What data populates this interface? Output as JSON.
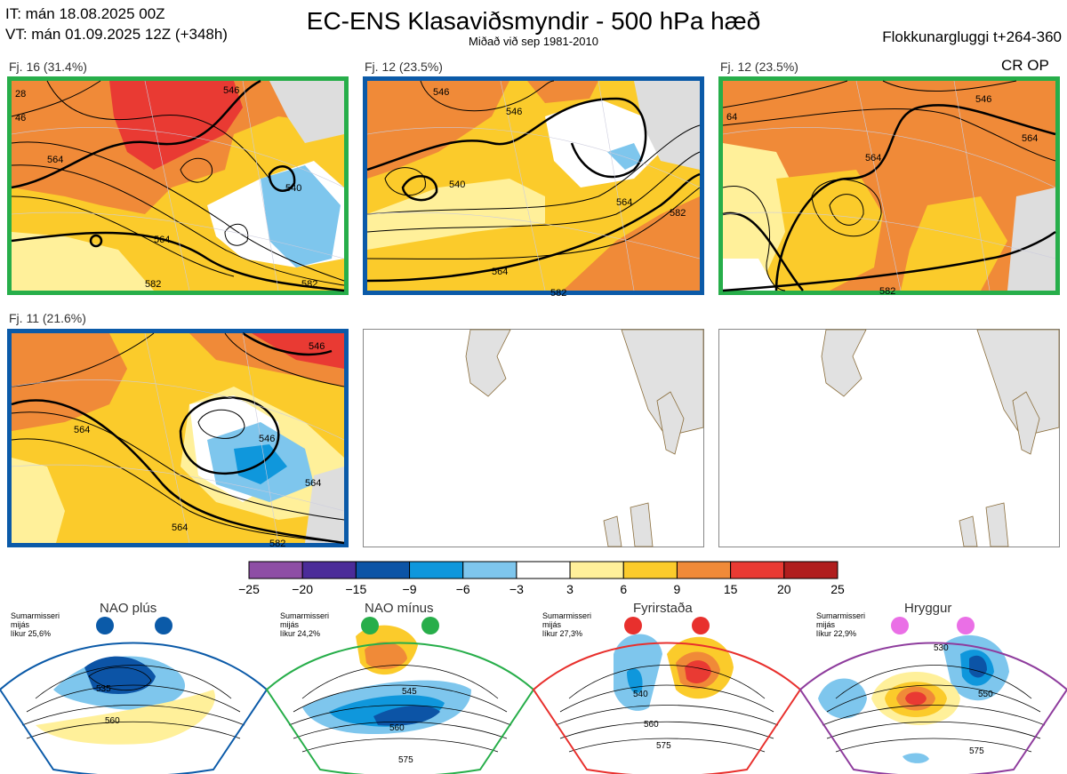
{
  "header": {
    "it_line": "IT: mán 18.08.2025 00Z",
    "vt_line": "VT: mán 01.09.2025 12Z  (+348h)",
    "title": "EC-ENS Klasaviðsmyndir - 500 hPa hæð",
    "subtitle": "Miðað við sep 1981-2010",
    "window": "Flokkunargluggi t+264-360",
    "run_tag": "CR OP"
  },
  "colors": {
    "green": "#27ae4a",
    "blue": "#0b5aa8",
    "red": "#e8302d",
    "purple": "#8e3c9d",
    "pink": "#ea6fe6"
  },
  "panels": [
    {
      "label": "Fj. 16 (31.4%)",
      "frame": "green",
      "contours": [
        "28",
        "46",
        "564",
        "564",
        "582",
        "546",
        "540",
        "582"
      ]
    },
    {
      "label": "Fj. 12 (23.5%)",
      "frame": "blue",
      "contours": [
        "546",
        "540",
        "546",
        "564",
        "582",
        "564",
        "582"
      ]
    },
    {
      "label": "Fj. 12 (23.5%)",
      "frame": "green",
      "contours": [
        "546",
        "564",
        "564",
        "64",
        "582"
      ]
    },
    {
      "label": "Fj. 11 (21.6%)",
      "frame": "blue",
      "contours": [
        "546",
        "564",
        "546",
        "564",
        "564",
        "582"
      ]
    }
  ],
  "colorbar": {
    "ticks": [
      "−25",
      "−20",
      "−15",
      "−9",
      "−6",
      "−3",
      "3",
      "6",
      "9",
      "15",
      "20",
      "25"
    ],
    "colors": [
      "#8e4ea5",
      "#4b2c99",
      "#0c54a6",
      "#0f97dc",
      "#7ec6ed",
      "#ffffff",
      "#fff09a",
      "#fbcb2b",
      "#f08a38",
      "#e93a33",
      "#b01e1e"
    ]
  },
  "regimes": [
    {
      "name": "NAO plús",
      "season": "Sumarmisseri",
      "mid": "mijás",
      "prob": "líkur 25,6%",
      "contours": [
        "535",
        "560"
      ]
    },
    {
      "name": "NAO mínus",
      "season": "Sumarmisseri",
      "mid": "mijás",
      "prob": "líkur 24,2%",
      "contours": [
        "545",
        "560",
        "575"
      ]
    },
    {
      "name": "Fyrirstaða",
      "season": "Sumarmisseri",
      "mid": "mijás",
      "prob": "líkur 27,3%",
      "contours": [
        "540",
        "560",
        "575"
      ]
    },
    {
      "name": "Hryggur",
      "season": "Sumarmisseri",
      "mid": "mijás",
      "prob": "líkur 22,9%",
      "contours": [
        "530",
        "550",
        "575"
      ]
    }
  ]
}
